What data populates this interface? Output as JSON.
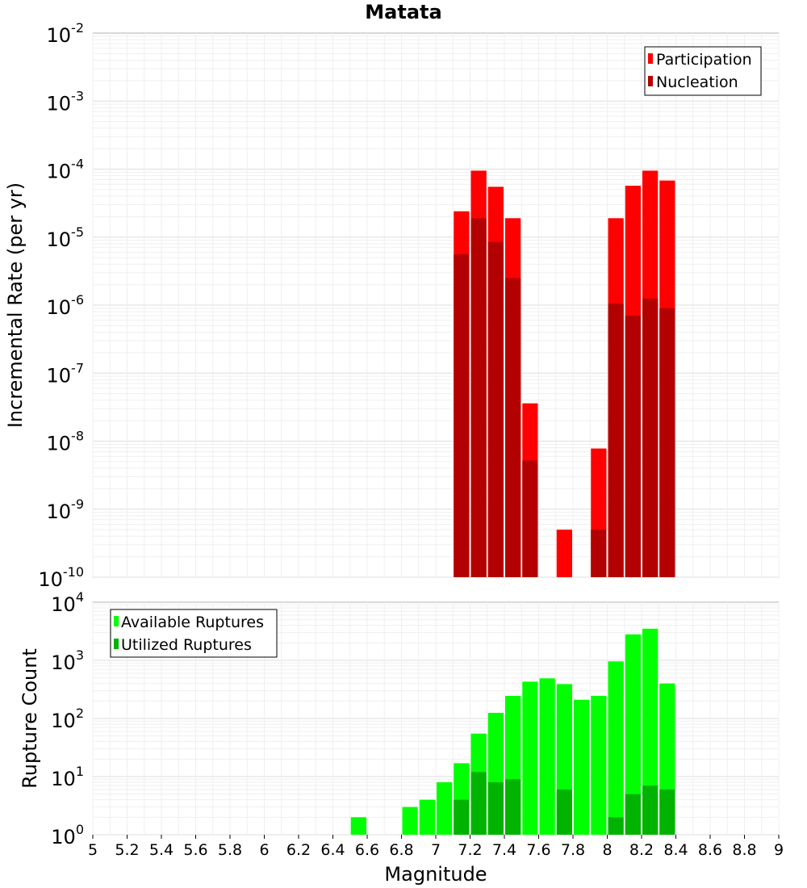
{
  "chart_data": [
    {
      "type": "bar",
      "title": "Matata",
      "xlabel": "Magnitude",
      "ylabel": "Incremental Rate (per yr)",
      "yscale": "log",
      "ylim": [
        1e-10,
        0.01
      ],
      "xlim": [
        5,
        9
      ],
      "bar_width": 0.1,
      "grid": true,
      "legend_position": "top-right",
      "series": [
        {
          "name": "Participation",
          "color": "#ff0000",
          "x": [
            7.15,
            7.25,
            7.35,
            7.45,
            7.55,
            7.75,
            7.95,
            8.05,
            8.15,
            8.25,
            8.35
          ],
          "values": [
            2.4e-05,
            9.5e-05,
            5.5e-05,
            1.9e-05,
            3.6e-08,
            5e-10,
            7.8e-09,
            1.9e-05,
            5.7e-05,
            9.5e-05,
            6.8e-05
          ]
        },
        {
          "name": "Nucleation",
          "color": "#b30000",
          "x": [
            7.15,
            7.25,
            7.35,
            7.45,
            7.55,
            7.95,
            8.05,
            8.15,
            8.25,
            8.35
          ],
          "values": [
            5.6e-06,
            1.9e-05,
            8.5e-06,
            2.5e-06,
            5.2e-09,
            5e-10,
            1.05e-06,
            7e-07,
            1.25e-06,
            9e-07
          ]
        }
      ]
    },
    {
      "type": "bar",
      "xlabel": "Magnitude",
      "ylabel": "Rupture Count",
      "yscale": "log",
      "ylim": [
        1,
        10000
      ],
      "xlim": [
        5,
        9
      ],
      "bar_width": 0.1,
      "grid": true,
      "legend_position": "top-left",
      "series": [
        {
          "name": "Available Ruptures",
          "color": "#00ff00",
          "x": [
            6.55,
            6.75,
            6.85,
            6.95,
            7.05,
            7.15,
            7.25,
            7.35,
            7.45,
            7.55,
            7.65,
            7.75,
            7.85,
            7.95,
            8.05,
            8.15,
            8.25,
            8.35
          ],
          "values": [
            2,
            1,
            3,
            4,
            8,
            17,
            55,
            125,
            245,
            430,
            490,
            390,
            210,
            245,
            960,
            2800,
            3500,
            400
          ]
        },
        {
          "name": "Utilized Ruptures",
          "color": "#00b300",
          "x": [
            7.15,
            7.25,
            7.35,
            7.45,
            7.55,
            7.75,
            7.85,
            7.95,
            8.05,
            8.15,
            8.25,
            8.35
          ],
          "values": [
            4,
            12,
            8,
            9,
            1,
            6,
            1,
            1,
            2,
            5,
            7,
            6
          ]
        }
      ]
    }
  ],
  "x_ticks": [
    "5",
    "5.2",
    "5.4",
    "5.6",
    "5.8",
    "6",
    "6.2",
    "6.4",
    "6.6",
    "6.8",
    "7",
    "7.2",
    "7.4",
    "7.6",
    "7.8",
    "8",
    "8.2",
    "8.4",
    "8.6",
    "8.8",
    "9"
  ],
  "top_y_ticks": [
    {
      "base": "10",
      "exp": "-2"
    },
    {
      "base": "10",
      "exp": "-3"
    },
    {
      "base": "10",
      "exp": "-4"
    },
    {
      "base": "10",
      "exp": "-5"
    },
    {
      "base": "10",
      "exp": "-6"
    },
    {
      "base": "10",
      "exp": "-7"
    },
    {
      "base": "10",
      "exp": "-8"
    },
    {
      "base": "10",
      "exp": "-9"
    },
    {
      "base": "10",
      "exp": "-10"
    }
  ],
  "bottom_y_ticks": [
    {
      "base": "10",
      "exp": "4"
    },
    {
      "base": "10",
      "exp": "3"
    },
    {
      "base": "10",
      "exp": "2"
    },
    {
      "base": "10",
      "exp": "1"
    },
    {
      "base": "10",
      "exp": "0"
    }
  ]
}
